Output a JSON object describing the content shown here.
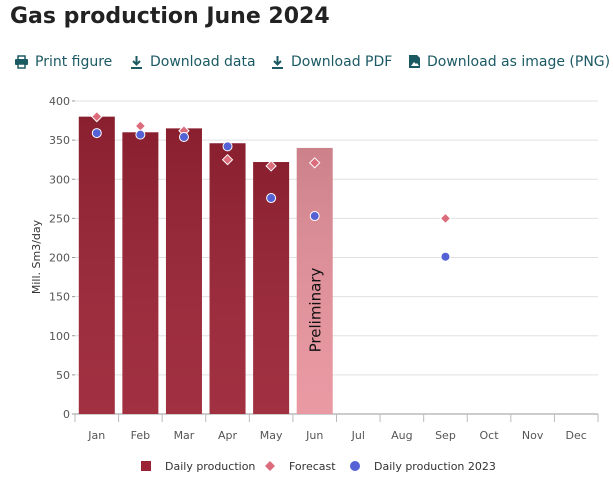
{
  "chart_data": {
    "type": "bar",
    "title": "Gas production June 2024",
    "toolbar": [
      "Print figure",
      "Download data",
      "Download PDF",
      "Download as image (PNG)"
    ],
    "y_label": "Mill. Sm3/day",
    "categories": [
      "Jan",
      "Feb",
      "Mar",
      "Apr",
      "May",
      "Jun",
      "Jul",
      "Aug",
      "Sep",
      "Oct",
      "Nov",
      "Dec"
    ],
    "ylim": [
      0,
      400
    ],
    "yticks": [
      0,
      50,
      100,
      150,
      200,
      250,
      300,
      350,
      400
    ],
    "grid": true,
    "series": [
      {
        "name": "Daily production",
        "type": "bar",
        "color": "#9b2335",
        "point_colors": [
          "#9b2335",
          "#9b2335",
          "#9b2335",
          "#9b2335",
          "#9b2335",
          "#e8939d",
          null,
          null,
          null,
          null,
          null,
          null
        ],
        "values": [
          380,
          360,
          365,
          346,
          322,
          340,
          null,
          null,
          null,
          null,
          null,
          null
        ]
      },
      {
        "name": "Forecast",
        "type": "diamond",
        "color": "#dc6c7c",
        "values": [
          380,
          368,
          362,
          325,
          317,
          321,
          null,
          null,
          250,
          null,
          null,
          null
        ]
      },
      {
        "name": "Daily production 2023",
        "type": "dot",
        "color": "#5562d6",
        "values": [
          359,
          357,
          354,
          342,
          276,
          253,
          null,
          null,
          201,
          null,
          null,
          null
        ]
      }
    ],
    "annotations": [
      {
        "text": "Preliminary",
        "x": "Jun"
      }
    ]
  }
}
